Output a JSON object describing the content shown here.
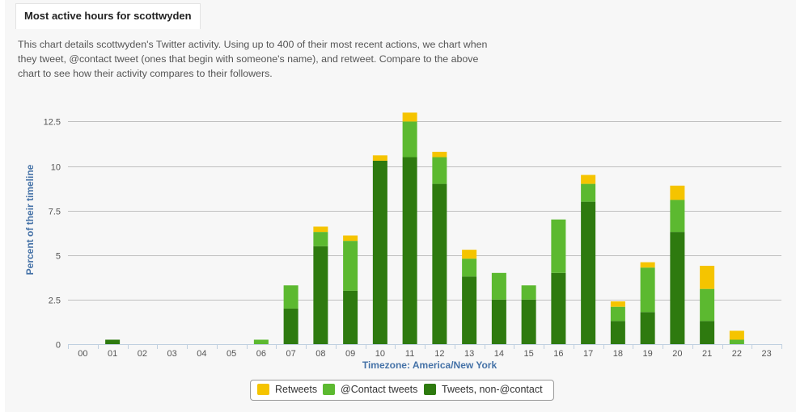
{
  "header": {
    "tab_title": "Most active hours for scottwyden",
    "description": "This chart details scottwyden's Twitter activity. Using up to 400 of their most recent actions, we chart when they tweet, @contact tweet (ones that begin with someone's name), and retweet. Compare to the above chart to see how their activity compares to their followers."
  },
  "chart_data": {
    "type": "bar",
    "stacked": true,
    "xlabel": "Timezone: America/New York",
    "ylabel": "Percent of their timeline",
    "ylim": [
      0,
      13.2
    ],
    "yticks": [
      "0",
      "2.5",
      "5",
      "7.5",
      "10",
      "12.5"
    ],
    "ytick_values": [
      0,
      2.5,
      5,
      7.5,
      10,
      12.5
    ],
    "grid": true,
    "legend_position": "bottom-center",
    "categories": [
      "00",
      "01",
      "02",
      "03",
      "04",
      "05",
      "06",
      "07",
      "08",
      "09",
      "10",
      "11",
      "12",
      "13",
      "14",
      "15",
      "16",
      "17",
      "18",
      "19",
      "20",
      "21",
      "22",
      "23"
    ],
    "series": [
      {
        "name": "Tweets, non-@contact",
        "color": "#2e7a0f",
        "values": [
          0,
          0.25,
          0,
          0,
          0,
          0,
          0,
          2.0,
          5.5,
          3.0,
          10.3,
          10.5,
          9.0,
          3.8,
          2.5,
          2.5,
          4.0,
          8.0,
          1.3,
          1.8,
          6.3,
          1.3,
          0,
          0
        ]
      },
      {
        "name": "@Contact tweets",
        "color": "#5cb930",
        "values": [
          0,
          0,
          0,
          0,
          0,
          0,
          0.25,
          1.3,
          0.8,
          2.8,
          0,
          2.0,
          1.5,
          1.0,
          1.5,
          0.8,
          3.0,
          1.0,
          0.8,
          2.5,
          1.8,
          1.8,
          0.25,
          0
        ]
      },
      {
        "name": "Retweets",
        "color": "#f5c400",
        "values": [
          0,
          0,
          0,
          0,
          0,
          0,
          0,
          0,
          0.3,
          0.3,
          0.3,
          0.5,
          0.3,
          0.5,
          0,
          0,
          0,
          0.5,
          0.3,
          0.3,
          0.8,
          1.3,
          0.5,
          0
        ]
      }
    ]
  },
  "legend": {
    "items": [
      {
        "label": "Retweets",
        "color": "#f5c400"
      },
      {
        "label": "@Contact tweets",
        "color": "#5cb930"
      },
      {
        "label": "Tweets, non-@contact",
        "color": "#2e7a0f"
      }
    ]
  }
}
